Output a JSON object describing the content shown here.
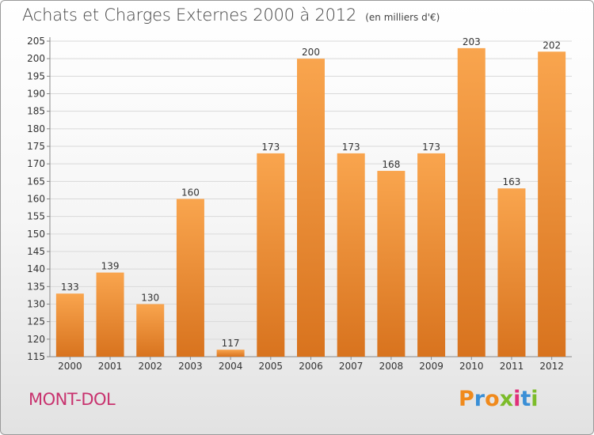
{
  "header": {
    "title": "Achats et Charges Externes 2000 à 2012",
    "unit": "(en milliers d'€)"
  },
  "footer": {
    "city": "MONT-DOL",
    "logo": {
      "letters": [
        "P",
        "r",
        "o",
        "x",
        "i",
        "t",
        "i"
      ],
      "colors": [
        "#f08a1c",
        "#3a8fd6",
        "#f08a1c",
        "#7cbc2a",
        "#e0307a",
        "#3a8fd6",
        "#7cbc2a"
      ]
    }
  },
  "chart_data": {
    "type": "bar",
    "title": "Achats et Charges Externes 2000 à 2012",
    "subtitle": "(en milliers d'€)",
    "categories": [
      "2000",
      "2001",
      "2002",
      "2003",
      "2004",
      "2005",
      "2006",
      "2007",
      "2008",
      "2009",
      "2010",
      "2011",
      "2012"
    ],
    "values": [
      133,
      139,
      130,
      160,
      117,
      173,
      200,
      173,
      168,
      173,
      203,
      163,
      202
    ],
    "ylim": [
      115,
      205
    ],
    "yticks": [
      115,
      120,
      125,
      130,
      135,
      140,
      145,
      150,
      155,
      160,
      165,
      170,
      175,
      180,
      185,
      190,
      195,
      200,
      205
    ],
    "grid": true,
    "bar_color_light": "#f9a54e",
    "bar_color_dark": "#d8731e"
  }
}
